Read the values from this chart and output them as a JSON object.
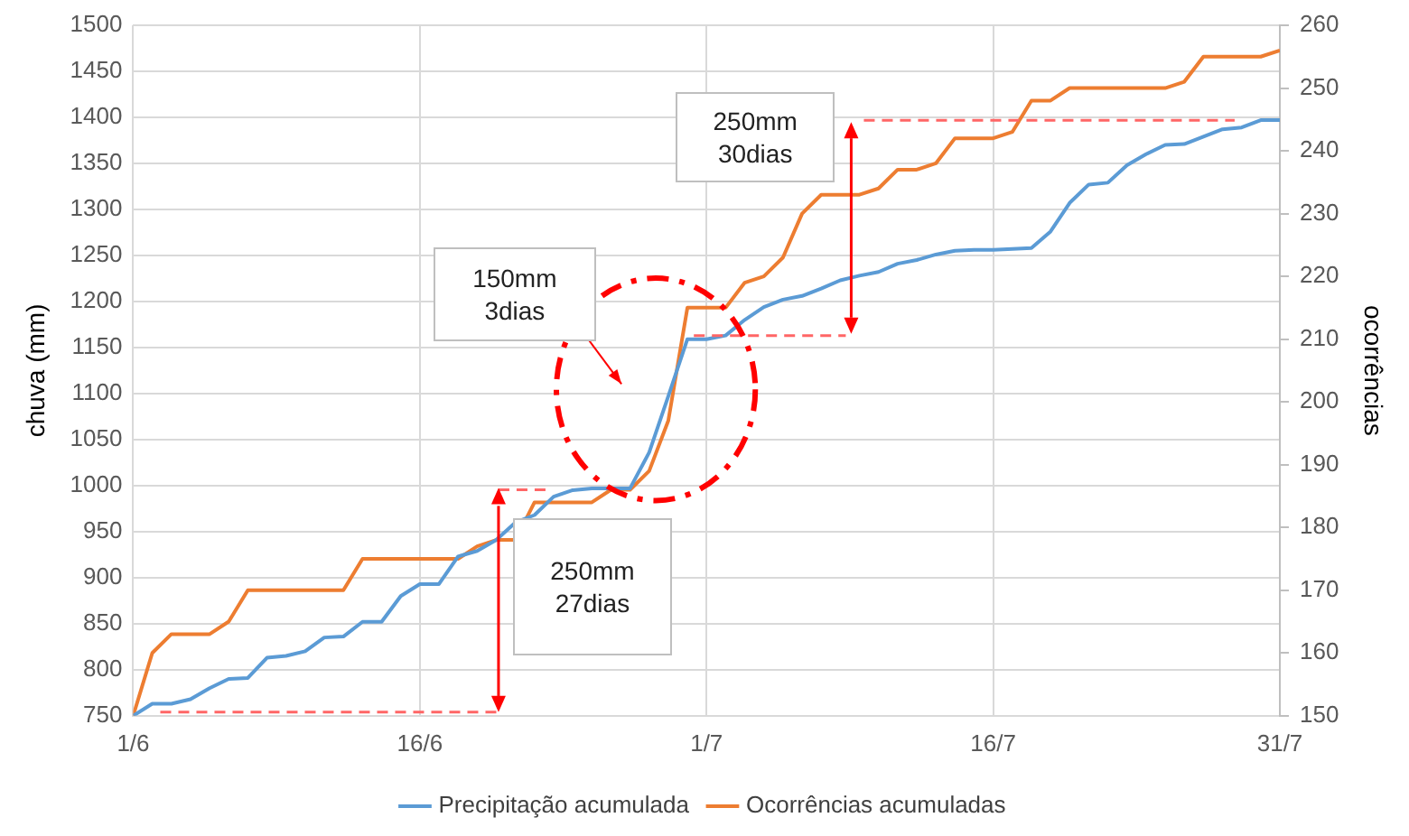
{
  "chart_data": {
    "type": "line",
    "xlabel": null,
    "ylabel": "chuva (mm)",
    "y2label": "ocorrências",
    "x": [
      "--06-01",
      "--06-02",
      "--06-03",
      "--06-04",
      "--06-05",
      "--06-06",
      "--06-07",
      "--06-08",
      "--06-09",
      "--06-10",
      "--06-11",
      "--06-12",
      "--06-13",
      "--06-14",
      "--06-15",
      "--06-16",
      "--06-17",
      "--06-18",
      "--06-19",
      "--06-20",
      "--06-21",
      "--06-22",
      "--06-23",
      "--06-24",
      "--06-25",
      "--06-26",
      "--06-27",
      "--06-28",
      "--06-29",
      "--06-30",
      "--07-01",
      "--07-02",
      "--07-03",
      "--07-04",
      "--07-05",
      "--07-06",
      "--07-07",
      "--07-08",
      "--07-09",
      "--07-10",
      "--07-11",
      "--07-12",
      "--07-13",
      "--07-14",
      "--07-15",
      "--07-16",
      "--07-17",
      "--07-18",
      "--07-19",
      "--07-20",
      "--07-21",
      "--07-22",
      "--07-23",
      "--07-24",
      "--07-25",
      "--07-26",
      "--07-27",
      "--07-28",
      "--07-29",
      "--07-30",
      "--07-31"
    ],
    "xlim": [
      "--06-01",
      "--07-31"
    ],
    "xticks": [
      {
        "value": "--06-01",
        "label": "1/6"
      },
      {
        "value": "--06-16",
        "label": "16/6"
      },
      {
        "value": "--07-01",
        "label": "1/7"
      },
      {
        "value": "--07-16",
        "label": "16/7"
      },
      {
        "value": "--07-31",
        "label": "31/7"
      }
    ],
    "ylim": [
      750,
      1500
    ],
    "yticks": [
      750,
      800,
      850,
      900,
      950,
      1000,
      1050,
      1100,
      1150,
      1200,
      1250,
      1300,
      1350,
      1400,
      1450,
      1500
    ],
    "y2lim": [
      150,
      260
    ],
    "y2ticks": [
      150,
      160,
      170,
      180,
      190,
      200,
      210,
      220,
      230,
      240,
      250,
      260
    ],
    "series": [
      {
        "name": "Precipitação acumulada",
        "color": "#5b9bd5",
        "values": [
          750,
          763,
          763,
          768,
          780,
          790,
          791,
          813,
          815,
          820,
          835,
          836,
          852,
          852,
          880,
          893,
          893,
          923,
          929,
          941,
          960,
          968,
          988,
          995,
          997,
          997,
          997,
          1036,
          1097,
          1159,
          1159,
          1163,
          1180,
          1194,
          1202,
          1206,
          1214,
          1223,
          1228,
          1232,
          1241,
          1245,
          1251,
          1255,
          1256,
          1256,
          1257,
          1258,
          1276,
          1307,
          1327,
          1329,
          1348,
          1360,
          1370,
          1371,
          1379,
          1387,
          1389,
          1397,
          1397
        ]
      },
      {
        "name": "Ocorrências acumuladas",
        "color": "#ed7d31",
        "axis": "y2",
        "values": [
          150,
          160,
          163,
          163,
          163,
          165,
          170,
          170,
          170,
          170,
          170,
          170,
          175,
          175,
          175,
          175,
          175,
          175,
          177,
          178,
          178,
          184,
          184,
          184,
          184,
          186,
          186,
          189,
          197,
          215,
          215,
          215,
          219,
          220,
          223,
          230,
          233,
          233,
          233,
          234,
          237,
          237,
          238,
          242,
          242,
          242,
          243,
          248,
          248,
          250,
          250,
          250,
          250,
          250,
          250,
          251,
          255,
          255,
          255,
          255,
          256
        ]
      }
    ],
    "grid": true,
    "legend": "bottom",
    "marker": "none",
    "line_style": "solid",
    "annotations": [
      "250mm\n27dias",
      "150mm\n3dias",
      "250mm\n30dias"
    ]
  }
}
